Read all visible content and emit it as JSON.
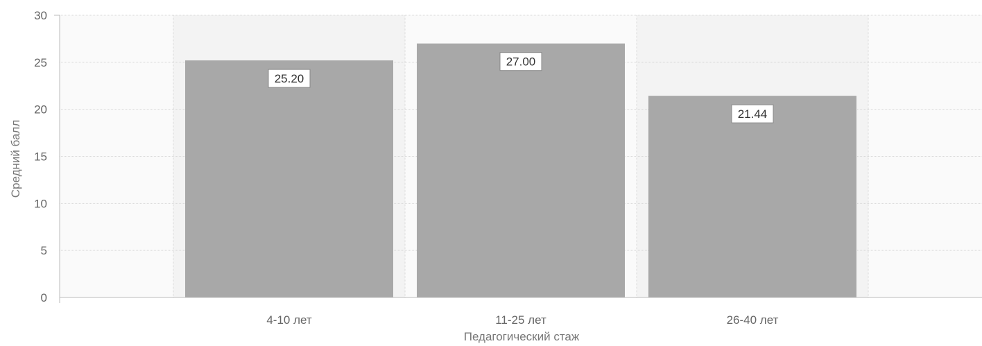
{
  "chart_data": {
    "type": "bar",
    "title": "",
    "xlabel": "Педагогический стаж",
    "ylabel": "Средний балл",
    "categories": [
      "4-10 лет",
      "11-25 лет",
      "26-40 лет"
    ],
    "values": [
      25.2,
      27.0,
      21.44
    ],
    "value_labels": [
      "25.20",
      "27.00",
      "21.44"
    ],
    "ylim": [
      0,
      30
    ],
    "yticks": [
      0,
      5,
      10,
      15,
      20,
      25,
      30
    ],
    "grid": true,
    "legend": "none",
    "colors": {
      "bar": "#a8a8a8",
      "plot_band_light": "#fafafa",
      "plot_band_dark": "#f3f3f3",
      "gridline": "#d8d8d8",
      "axis": "#bbbbbb",
      "label_box_border": "#888888"
    }
  }
}
